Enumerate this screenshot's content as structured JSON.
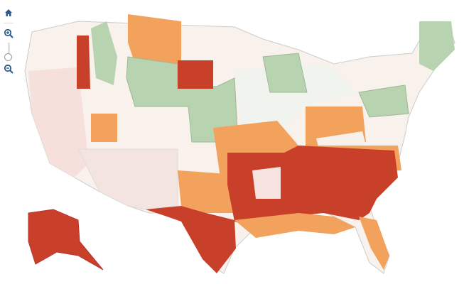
{
  "controls": {
    "home": "home-icon",
    "zoom_in": "zoom-in-icon",
    "zoom_out": "zoom-out-icon",
    "zoom_level": 0.15
  },
  "colors": {
    "dark_red": "#c9402a",
    "orange": "#f2a25c",
    "green": "#b8d3b0",
    "dark_green": "#7a9e72",
    "pale": "#f7ece6",
    "pale_pink": "#f6dcd8",
    "border": "#bfbfbf",
    "icon": "#2b5a8a"
  }
}
